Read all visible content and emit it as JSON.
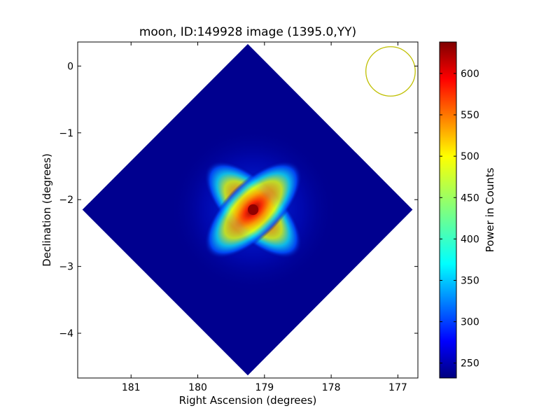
{
  "chart_data": {
    "type": "heatmap",
    "title": "moon, ID:149928 image (1395.0,YY)",
    "xlabel": "Right Ascension (degrees)",
    "ylabel": "Declination (degrees)",
    "xlim": [
      181.8,
      176.7
    ],
    "ylim": [
      -4.67,
      0.36
    ],
    "x_ticks": [
      181,
      180,
      179,
      178,
      177
    ],
    "x_tick_labels": [
      "181",
      "180",
      "179",
      "178",
      "177"
    ],
    "y_ticks": [
      0,
      -1,
      -2,
      -3,
      -4
    ],
    "y_tick_labels": [
      "0",
      "−1",
      "−2",
      "−3",
      "−4"
    ],
    "footprint_vertices": [
      [
        179.25,
        0.33
      ],
      [
        176.78,
        -2.15
      ],
      [
        179.25,
        -4.63
      ],
      [
        181.73,
        -2.15
      ]
    ],
    "background_level": 240,
    "peak": {
      "ra": 179.17,
      "dec": -2.15,
      "value": 635
    },
    "beam": {
      "ra": 177.11,
      "dec": -0.08,
      "radius_deg": 0.37,
      "color": "#bfbf00"
    },
    "colorbar": {
      "label": "Power in Counts",
      "min": 232,
      "max": 638,
      "ticks": [
        250,
        300,
        350,
        400,
        450,
        500,
        550,
        600
      ],
      "tick_labels": [
        "250",
        "300",
        "350",
        "400",
        "450",
        "500",
        "550",
        "600"
      ],
      "colormap": "jet"
    },
    "grid": false
  }
}
